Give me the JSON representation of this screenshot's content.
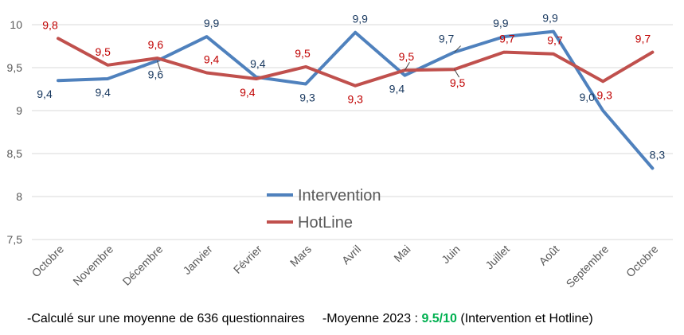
{
  "chart_data": {
    "type": "line",
    "categories": [
      "Octobre",
      "Novembre",
      "Décembre",
      "Janvier",
      "Février",
      "Mars",
      "Avril",
      "Mai",
      "Juin",
      "Juillet",
      "Août",
      "Septembre",
      "Octobre"
    ],
    "ylim": [
      7.5,
      10
    ],
    "yticks": [
      "10",
      "9,5",
      "9",
      "8,5",
      "8",
      "7,5"
    ],
    "grid": true,
    "legend_position": "center",
    "series": [
      {
        "name": "Intervention",
        "color": "#4f81bd",
        "values": [
          9.35,
          9.37,
          9.58,
          9.86,
          9.39,
          9.31,
          9.91,
          9.41,
          9.68,
          9.86,
          9.92,
          9.0,
          8.33
        ],
        "labels": [
          "9,4",
          "9,4",
          "9,6",
          "9,9",
          "9,4",
          "9,3",
          "9,9",
          "9,4",
          "9,7",
          "9,9",
          "9,9",
          "9,0",
          "8,3"
        ],
        "label_color": "#17375e"
      },
      {
        "name": "HotLine",
        "color": "#c0504d",
        "values": [
          9.84,
          9.53,
          9.61,
          9.44,
          9.37,
          9.51,
          9.29,
          9.47,
          9.48,
          9.68,
          9.66,
          9.34,
          9.68
        ],
        "labels": [
          "9,8",
          "9,5",
          "9,6",
          "9,4",
          "9,4",
          "9,5",
          "9,3",
          "9,5",
          "9,5",
          "9,7",
          "9,7",
          "9,3",
          "9,7"
        ],
        "label_color": "#c00000"
      }
    ]
  },
  "footer": {
    "left_text": "-Calculé sur une moyenne de 636 questionnaires",
    "right_prefix": "-Moyenne 2023 : ",
    "right_highlight": "9.5/10",
    "right_suffix": " (Intervention et Hotline)",
    "highlight_color": "#00b050"
  }
}
